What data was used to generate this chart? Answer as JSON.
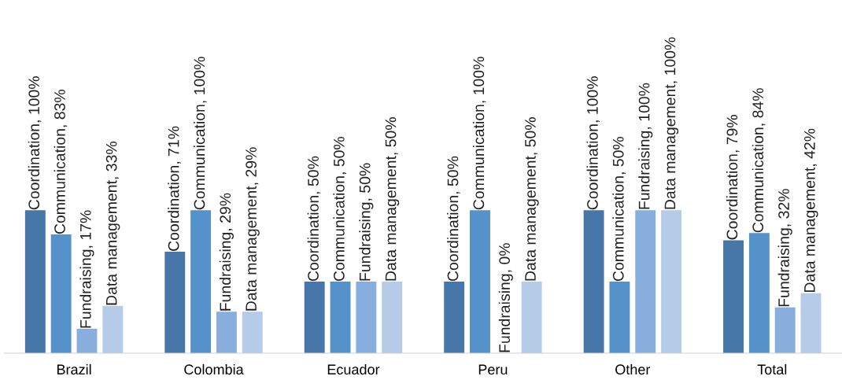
{
  "chart_data": {
    "type": "bar",
    "categories": [
      "Brazil",
      "Colombia",
      "Ecuador",
      "Peru",
      "Other",
      "Total"
    ],
    "series": [
      {
        "color": "#4677a8",
        "values": [
          100,
          71,
          50,
          50,
          100,
          79
        ],
        "value_labels": [
          "Coordination, 100%",
          "Coordination, 71%",
          "Coordination, 50%",
          "Coordination, 50%",
          "Coordination, 100%",
          "Coordination, 79%"
        ]
      },
      {
        "color": "#5592c9",
        "values": [
          83,
          100,
          50,
          100,
          50,
          84
        ],
        "value_labels": [
          "Communication, 83%",
          "Communication, 100%",
          "Communication, 50%",
          "Communication, 100%",
          "Communication, 50%",
          "Communication, 84%"
        ]
      },
      {
        "color": "#87aedd",
        "values": [
          17,
          29,
          50,
          0,
          100,
          32
        ],
        "value_labels": [
          "Fundraising, 17%",
          "Fundraising, 29%",
          "Fundraising, 50%",
          "Fundraising, 0%",
          "Fundraising, 100%",
          "Fundraising, 32%"
        ]
      },
      {
        "color": "#b5cbe8",
        "values": [
          33,
          29,
          50,
          50,
          100,
          42
        ],
        "value_labels": [
          "Data management, 33%",
          "Data management, 29%",
          "Data management, 50%",
          "Data management, 50%",
          "Data management, 100%",
          "Data management, 42%"
        ]
      }
    ],
    "grid": false,
    "legend": false
  }
}
